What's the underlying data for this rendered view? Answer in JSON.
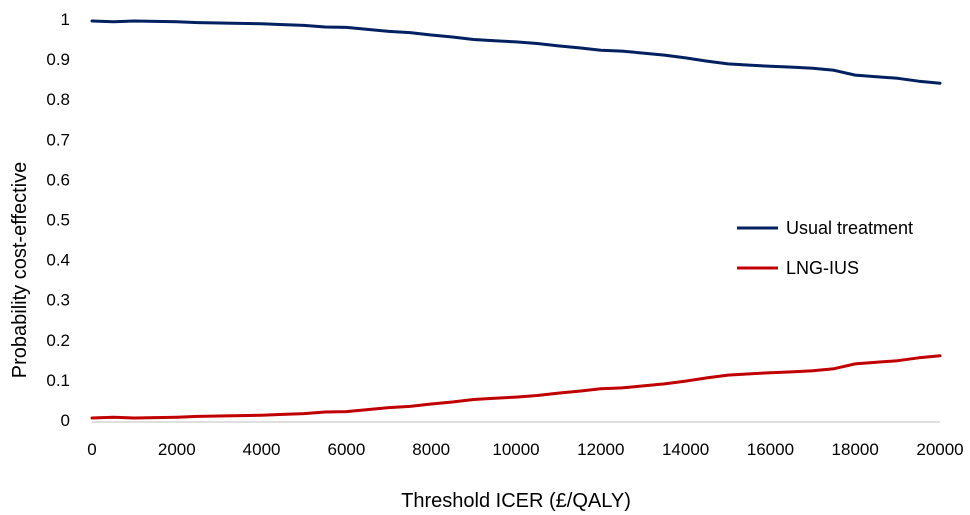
{
  "chart_data": {
    "type": "line",
    "title": "",
    "xlabel": "Threshold ICER (£/QALY)",
    "ylabel": "Probability cost-effective",
    "xlim": [
      0,
      20000
    ],
    "ylim": [
      0,
      1
    ],
    "x_ticks": [
      "0",
      "2000",
      "4000",
      "6000",
      "8000",
      "10000",
      "12000",
      "14000",
      "16000",
      "18000",
      "20000"
    ],
    "y_ticks": [
      "0",
      "0.1",
      "0.2",
      "0.3",
      "0.4",
      "0.5",
      "0.6",
      "0.7",
      "0.8",
      "0.9",
      "1"
    ],
    "grid": false,
    "legend_position": "right",
    "x": [
      0,
      500,
      1000,
      1500,
      2000,
      2500,
      3000,
      3500,
      4000,
      4500,
      5000,
      5500,
      6000,
      6500,
      7000,
      7500,
      8000,
      8500,
      9000,
      9500,
      10000,
      10500,
      11000,
      11500,
      12000,
      12500,
      13000,
      13500,
      14000,
      14500,
      15000,
      15500,
      16000,
      16500,
      17000,
      17500,
      18000,
      18500,
      19000,
      19500,
      20000
    ],
    "series": [
      {
        "name": "Usual treatment",
        "color": "#002060",
        "values": [
          0.995,
          0.993,
          0.995,
          0.994,
          0.993,
          0.991,
          0.99,
          0.989,
          0.988,
          0.986,
          0.984,
          0.98,
          0.979,
          0.974,
          0.969,
          0.966,
          0.96,
          0.955,
          0.949,
          0.946,
          0.943,
          0.939,
          0.933,
          0.928,
          0.922,
          0.92,
          0.915,
          0.91,
          0.903,
          0.895,
          0.888,
          0.885,
          0.882,
          0.88,
          0.877,
          0.872,
          0.86,
          0.856,
          0.852,
          0.845,
          0.84
        ]
      },
      {
        "name": "LNG-IUS",
        "color": "#C00000",
        "values": [
          0.005,
          0.007,
          0.005,
          0.006,
          0.007,
          0.009,
          0.01,
          0.011,
          0.012,
          0.014,
          0.016,
          0.02,
          0.021,
          0.026,
          0.031,
          0.034,
          0.04,
          0.045,
          0.051,
          0.054,
          0.057,
          0.061,
          0.067,
          0.072,
          0.078,
          0.08,
          0.085,
          0.09,
          0.097,
          0.105,
          0.112,
          0.115,
          0.118,
          0.12,
          0.123,
          0.128,
          0.14,
          0.144,
          0.148,
          0.155,
          0.16
        ]
      }
    ]
  }
}
